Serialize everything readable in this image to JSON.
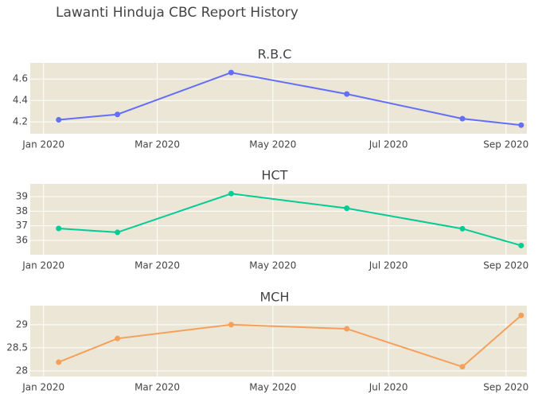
{
  "title": "Lawanti Hinduja CBC Report History",
  "chart_data": [
    {
      "type": "line",
      "title": "R.B.C",
      "x": [
        "2020-01",
        "2020-02",
        "2020-04",
        "2020-06",
        "2020-08",
        "2020-09"
      ],
      "values": [
        4.22,
        4.27,
        4.66,
        4.46,
        4.23,
        4.17
      ],
      "color": "#636efa",
      "xlim": [
        "2019-12-25",
        "2020-09-12"
      ],
      "xticks": [
        {
          "value": "2020-01",
          "label": "Jan 2020"
        },
        {
          "value": "2020-03",
          "label": "Mar 2020"
        },
        {
          "value": "2020-05",
          "label": "May 2020"
        },
        {
          "value": "2020-07",
          "label": "Jul 2020"
        },
        {
          "value": "2020-09",
          "label": "Sep 2020"
        }
      ],
      "ylim": [
        4.09,
        4.75
      ],
      "yticks": [
        4.2,
        4.4,
        4.6
      ],
      "grid": true
    },
    {
      "type": "line",
      "title": "HCT",
      "x": [
        "2020-01",
        "2020-02",
        "2020-04",
        "2020-06",
        "2020-08",
        "2020-09"
      ],
      "values": [
        36.82,
        36.55,
        39.2,
        38.2,
        36.8,
        35.65
      ],
      "color": "#00cc96",
      "xlim": [
        "2019-12-25",
        "2020-09-12"
      ],
      "xticks": [
        {
          "value": "2020-01",
          "label": "Jan 2020"
        },
        {
          "value": "2020-03",
          "label": "Mar 2020"
        },
        {
          "value": "2020-05",
          "label": "May 2020"
        },
        {
          "value": "2020-07",
          "label": "Jul 2020"
        },
        {
          "value": "2020-09",
          "label": "Sep 2020"
        }
      ],
      "ylim": [
        35.02,
        39.87
      ],
      "yticks": [
        36,
        37,
        38,
        39
      ],
      "grid": true
    },
    {
      "type": "line",
      "title": "MCH",
      "x": [
        "2020-01",
        "2020-02",
        "2020-04",
        "2020-06",
        "2020-08",
        "2020-09"
      ],
      "values": [
        28.19,
        28.7,
        29.0,
        28.91,
        28.09,
        29.2
      ],
      "color": "#f5a05a",
      "xlim": [
        "2019-12-25",
        "2020-09-12"
      ],
      "xticks": [
        {
          "value": "2020-01",
          "label": "Jan 2020"
        },
        {
          "value": "2020-03",
          "label": "Mar 2020"
        },
        {
          "value": "2020-05",
          "label": "May 2020"
        },
        {
          "value": "2020-07",
          "label": "Jul 2020"
        },
        {
          "value": "2020-09",
          "label": "Sep 2020"
        }
      ],
      "ylim": [
        27.88,
        29.41
      ],
      "yticks": [
        28,
        28.5,
        29
      ],
      "grid": true
    }
  ]
}
